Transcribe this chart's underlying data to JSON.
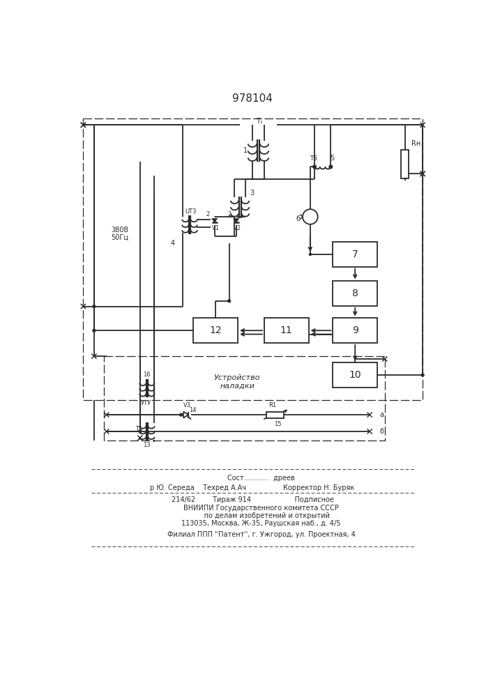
{
  "title": "978104",
  "bg_color": "#ffffff",
  "line_color": "#2a2a2a",
  "lw": 1.3,
  "fig_width": 7.07,
  "fig_height": 10.0,
  "footer_lines": [
    [
      "        Сост............  дреев",
      735,
      "center"
    ],
    [
      "р Ю. Середа    Техред А.Ач                 Корректор Н. Буряк",
      753,
      "center"
    ],
    [
      "214/62        Тираж 914                    Подписное",
      775,
      "center"
    ],
    [
      "        ВНИИПИ Государственного комитета СССР",
      791,
      "center"
    ],
    [
      "             по делам изобретений и открытий",
      805,
      "center"
    ],
    [
      "        113035, Москва, Ж-35, Раушская наб., д. 4/5",
      819,
      "center"
    ],
    [
      "        Филиал ППП ''Патент'', г. Ужгород, ул. Проектная, 4",
      840,
      "center"
    ]
  ]
}
